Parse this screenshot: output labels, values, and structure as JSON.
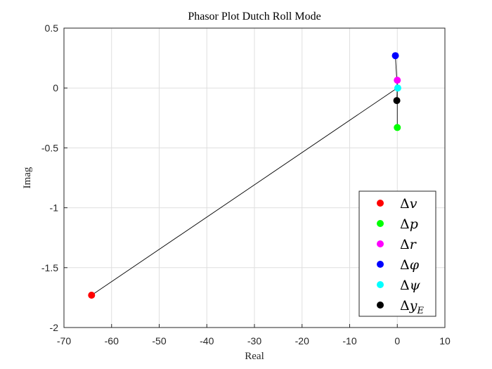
{
  "chart_data": {
    "type": "scatter",
    "title": "Phasor Plot Dutch Roll Mode",
    "xlabel": "Real",
    "ylabel": "Imag",
    "xlim": [
      -70,
      10
    ],
    "ylim": [
      -2,
      0.5
    ],
    "xticks": [
      "-70",
      "-60",
      "-50",
      "-40",
      "-30",
      "-20",
      "-10",
      "0",
      "10"
    ],
    "yticks": [
      "0.5",
      "0",
      "-0.5",
      "-1",
      "-1.5",
      "-2"
    ],
    "grid": true,
    "legend_position": "bottom-right",
    "series": [
      {
        "name": "Δv",
        "symbol": "Δ",
        "var": "v",
        "sub": "",
        "color": "#ff0000",
        "x": -64.2,
        "y": -1.73
      },
      {
        "name": "Δp",
        "symbol": "Δ",
        "var": "p",
        "sub": "",
        "color": "#00ff00",
        "x": 0.0,
        "y": -0.33
      },
      {
        "name": "Δr",
        "symbol": "Δ",
        "var": "r",
        "sub": "",
        "color": "#ff00ff",
        "x": 0.0,
        "y": 0.065
      },
      {
        "name": "Δφ",
        "symbol": "Δ",
        "var": "φ",
        "sub": "",
        "color": "#0000ff",
        "x": -0.4,
        "y": 0.27
      },
      {
        "name": "Δψ",
        "symbol": "Δ",
        "var": "ψ",
        "sub": "",
        "color": "#00ffff",
        "x": 0.1,
        "y": 0.0
      },
      {
        "name": "Δy_E",
        "symbol": "Δ",
        "var": "y",
        "sub": "E",
        "color": "#000000",
        "x": -0.1,
        "y": -0.105
      }
    ]
  }
}
